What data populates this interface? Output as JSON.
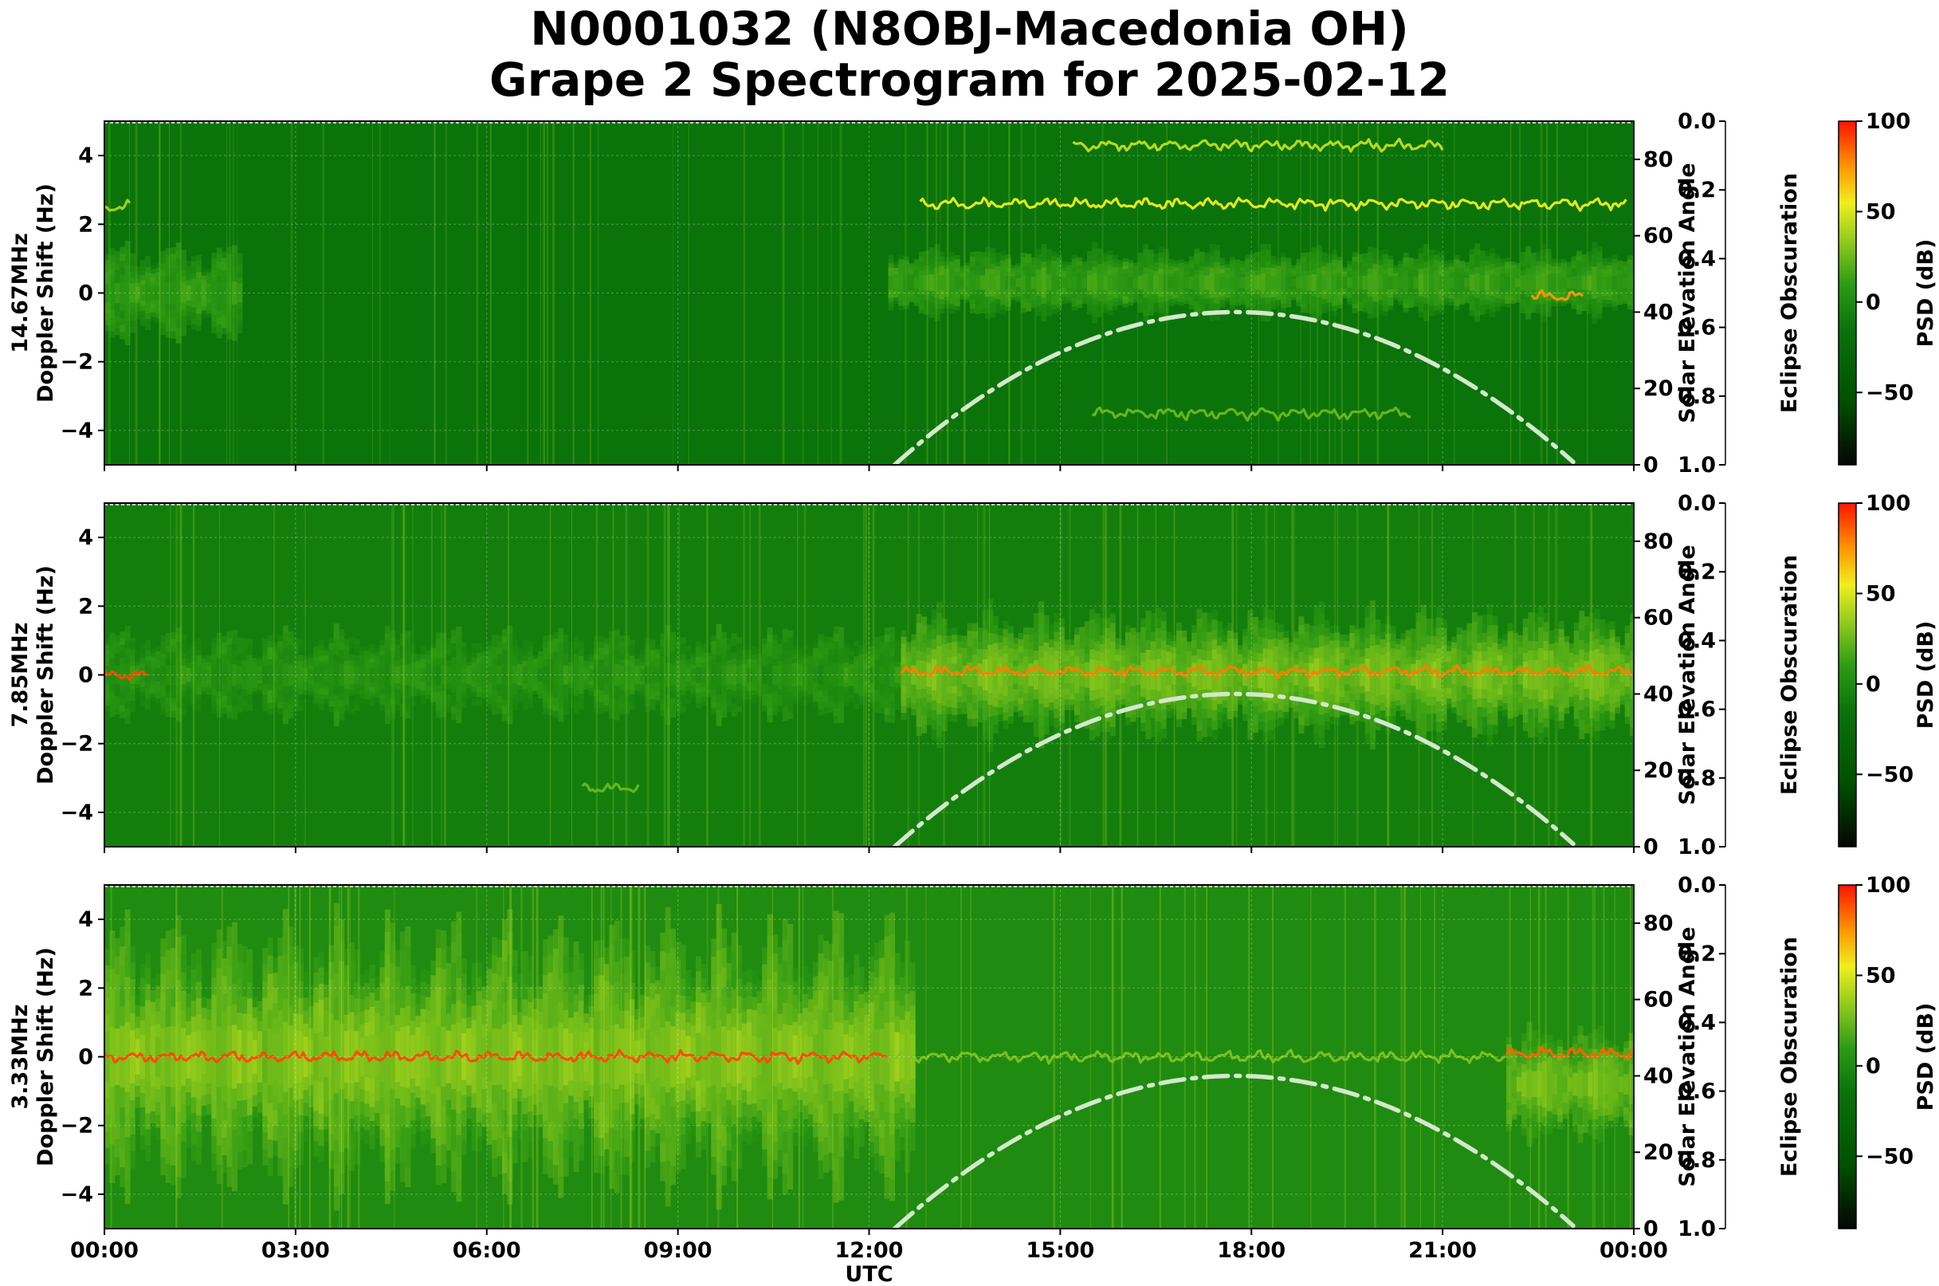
{
  "title": {
    "line1": "N0001032 (N8OBJ-Macedonia OH)",
    "line2": "Grape 2 Spectrogram for 2025-02-12"
  },
  "colors": {
    "spec_dark": "#0a6e0a",
    "spec_green": "#2a9a12",
    "spec_lime": "#9acd20",
    "spec_yellow": "#f2ee20",
    "spec_orange": "#ff8a00",
    "spec_red": "#ff1a00",
    "elevation_curve": "#d4e8cc",
    "cbar_black": "#050505"
  },
  "shared": {
    "x_label": "UTC",
    "x_ticks": [
      {
        "value": 0,
        "label": "00:00"
      },
      {
        "value": 3,
        "label": "03:00"
      },
      {
        "value": 6,
        "label": "06:00"
      },
      {
        "value": 9,
        "label": "09:00"
      },
      {
        "value": 12,
        "label": "12:00"
      },
      {
        "value": 15,
        "label": "15:00"
      },
      {
        "value": 18,
        "label": "18:00"
      },
      {
        "value": 21,
        "label": "21:00"
      },
      {
        "value": 24,
        "label": "00:00"
      }
    ],
    "y_ticks": [
      {
        "value": 4,
        "label": "4"
      },
      {
        "value": 2,
        "label": "2"
      },
      {
        "value": 0,
        "label": "0"
      },
      {
        "value": -2,
        "label": "−2"
      },
      {
        "value": -4,
        "label": "−4"
      }
    ],
    "elev_label": "Solar Elevation Angle",
    "elev_ticks": [
      {
        "value": 0,
        "label": "0"
      },
      {
        "value": 20,
        "label": "20"
      },
      {
        "value": 40,
        "label": "40"
      },
      {
        "value": 60,
        "label": "60"
      },
      {
        "value": 80,
        "label": "80"
      }
    ],
    "eclipse_label": "Eclipse Obscuration",
    "eclipse_ticks": [
      {
        "value": 0.0,
        "label": "0.0"
      },
      {
        "value": 0.2,
        "label": "0.2"
      },
      {
        "value": 0.4,
        "label": "0.4"
      },
      {
        "value": 0.6,
        "label": "0.6"
      },
      {
        "value": 0.8,
        "label": "0.8"
      },
      {
        "value": 1.0,
        "label": "1.0"
      }
    ],
    "psd_label": "PSD (dB)",
    "psd_ticks": [
      {
        "value": 100,
        "label": "100"
      },
      {
        "value": 50,
        "label": "50"
      },
      {
        "value": 0,
        "label": "0"
      },
      {
        "value": -50,
        "label": "−50"
      }
    ]
  },
  "chart_data": [
    {
      "type": "heatmap",
      "panel": "14.67MHz",
      "ylabel_line1": "14.67MHz",
      "ylabel_line2": "Doppler Shift (Hz)",
      "xlim": [
        0,
        24
      ],
      "ylim": [
        -5,
        5
      ],
      "elev_ylim": [
        0,
        90
      ],
      "eclipse_ylim": [
        1.0,
        0.0
      ],
      "psd_lim": [
        -90,
        100
      ],
      "background_db": -15,
      "activity_regions": [
        {
          "start": 0,
          "end": 2.1,
          "center": 0,
          "spread": 1.6,
          "db": 10
        },
        {
          "start": 12.3,
          "end": 24,
          "center": 0.3,
          "spread": 1.2,
          "db": 12
        }
      ],
      "traces": [
        {
          "start": 12.8,
          "end": 23.9,
          "doppler": 2.6,
          "db": 55
        },
        {
          "start": 15.2,
          "end": 21.0,
          "doppler": 4.3,
          "db": 45
        },
        {
          "start": 15.5,
          "end": 20.5,
          "doppler": -3.5,
          "db": 25
        },
        {
          "start": 0.0,
          "end": 0.4,
          "doppler": 2.5,
          "db": 40
        },
        {
          "start": 22.4,
          "end": 23.2,
          "doppler": -0.1,
          "db": 75
        }
      ],
      "solar_elevation": {
        "peak_hour": 17.75,
        "peak_deg": 40,
        "rise_hour": 12.4,
        "set_hour": 23.1
      }
    },
    {
      "type": "heatmap",
      "panel": "7.85MHz",
      "ylabel_line1": "7.85MHz",
      "ylabel_line2": "Doppler Shift (Hz)",
      "xlim": [
        0,
        24
      ],
      "ylim": [
        -5,
        5
      ],
      "elev_ylim": [
        0,
        90
      ],
      "eclipse_ylim": [
        1.0,
        0.0
      ],
      "psd_lim": [
        -90,
        100
      ],
      "background_db": -8,
      "activity_regions": [
        {
          "start": 0,
          "end": 12.5,
          "center": 0,
          "spread": 1.5,
          "db": 5
        },
        {
          "start": 12.5,
          "end": 24,
          "center": 0,
          "spread": 2.2,
          "db": 30
        }
      ],
      "traces": [
        {
          "start": 0.0,
          "end": 0.7,
          "doppler": 0.0,
          "db": 90
        },
        {
          "start": 12.5,
          "end": 24,
          "doppler": 0.1,
          "db": 80
        },
        {
          "start": 7.5,
          "end": 8.4,
          "doppler": -3.3,
          "db": 25
        }
      ],
      "solar_elevation": {
        "peak_hour": 17.75,
        "peak_deg": 40,
        "rise_hour": 12.4,
        "set_hour": 23.1
      }
    },
    {
      "type": "heatmap",
      "panel": "3.33MHz",
      "ylabel_line1": "3.33MHz",
      "ylabel_line2": "Doppler Shift (Hz)",
      "xlim": [
        0,
        24
      ],
      "ylim": [
        -5,
        5
      ],
      "elev_ylim": [
        0,
        90
      ],
      "eclipse_ylim": [
        1.0,
        0.0
      ],
      "psd_lim": [
        -90,
        100
      ],
      "background_db": 0,
      "activity_regions": [
        {
          "start": 0,
          "end": 12.7,
          "center": 0,
          "spread": 4.5,
          "db": 35
        },
        {
          "start": 22.0,
          "end": 24,
          "center": -0.8,
          "spread": 2.0,
          "db": 30
        }
      ],
      "traces": [
        {
          "start": 0.0,
          "end": 12.3,
          "doppler": 0.0,
          "db": 90
        },
        {
          "start": 12.3,
          "end": 22.0,
          "doppler": 0.0,
          "db": 30
        },
        {
          "start": 22.0,
          "end": 24,
          "doppler": 0.1,
          "db": 85
        }
      ],
      "solar_elevation": {
        "peak_hour": 17.75,
        "peak_deg": 40,
        "rise_hour": 12.4,
        "set_hour": 23.1
      }
    }
  ]
}
